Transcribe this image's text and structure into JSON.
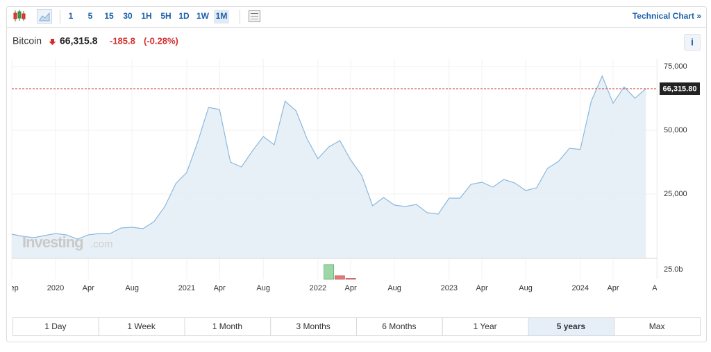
{
  "toolbar": {
    "intervals": [
      "1",
      "5",
      "15",
      "30",
      "1H",
      "5H",
      "1D",
      "1W",
      "1M"
    ],
    "active_interval": "1M",
    "link": "Technical Chart »"
  },
  "header": {
    "name": "Bitcoin",
    "price": "66,315.8",
    "change": "-185.8",
    "change_percent": "(-0.28%)",
    "info": "i"
  },
  "watermark": {
    "brand": "Investing",
    "suffix": ".com"
  },
  "chart_data": {
    "type": "area",
    "color": "#8ab8de",
    "fill": "#e4edf6",
    "x": [
      "2019-09",
      "2019-10",
      "2019-11",
      "2019-12",
      "2020-01",
      "2020-02",
      "2020-03",
      "2020-04",
      "2020-05",
      "2020-06",
      "2020-07",
      "2020-08",
      "2020-09",
      "2020-10",
      "2020-11",
      "2020-12",
      "2021-01",
      "2021-02",
      "2021-03",
      "2021-04",
      "2021-05",
      "2021-06",
      "2021-07",
      "2021-08",
      "2021-09",
      "2021-10",
      "2021-11",
      "2021-12",
      "2022-01",
      "2022-02",
      "2022-03",
      "2022-04",
      "2022-05",
      "2022-06",
      "2022-07",
      "2022-08",
      "2022-09",
      "2022-10",
      "2022-11",
      "2022-12",
      "2023-01",
      "2023-02",
      "2023-03",
      "2023-04",
      "2023-05",
      "2023-06",
      "2023-07",
      "2023-08",
      "2023-09",
      "2023-10",
      "2023-11",
      "2023-12",
      "2024-01",
      "2024-02",
      "2024-03",
      "2024-04",
      "2024-05",
      "2024-06",
      "2024-07"
    ],
    "values": [
      9240,
      8420,
      7880,
      8700,
      9510,
      8970,
      7340,
      8970,
      9510,
      9510,
      11680,
      11960,
      11410,
      14130,
      20100,
      29080,
      33420,
      45380,
      58970,
      58150,
      37500,
      35600,
      41850,
      47550,
      44290,
      61410,
      57610,
      46740,
      38860,
      43480,
      45920,
      38310,
      32340,
      20380,
      23640,
      20650,
      20110,
      20920,
      17660,
      17120,
      23370,
      23370,
      28800,
      29620,
      27720,
      30710,
      29350,
      26360,
      27450,
      35050,
      37770,
      42930,
      42500,
      61400,
      71300,
      60600,
      67000,
      62600,
      66315.8
    ],
    "xlim": [
      "2019-09",
      "2024-08"
    ],
    "xticks": [
      {
        "value": "2019-09",
        "label": "Sep"
      },
      {
        "value": "2020-01",
        "label": "2020"
      },
      {
        "value": "2020-04",
        "label": "Apr"
      },
      {
        "value": "2020-08",
        "label": "Aug"
      },
      {
        "value": "2021-01",
        "label": "2021"
      },
      {
        "value": "2021-04",
        "label": "Apr"
      },
      {
        "value": "2021-08",
        "label": "Aug"
      },
      {
        "value": "2022-01",
        "label": "2022"
      },
      {
        "value": "2022-04",
        "label": "Apr"
      },
      {
        "value": "2022-08",
        "label": "Aug"
      },
      {
        "value": "2023-01",
        "label": "2023"
      },
      {
        "value": "2023-04",
        "label": "Apr"
      },
      {
        "value": "2023-08",
        "label": "Aug"
      },
      {
        "value": "2024-01",
        "label": "2024"
      },
      {
        "value": "2024-04",
        "label": "Apr"
      },
      {
        "value": "2024-08",
        "label": "Au"
      }
    ],
    "ylim": [
      0,
      78000
    ],
    "yticks": [
      {
        "value": 25000,
        "label": "25,000"
      },
      {
        "value": 50000,
        "label": "50,000"
      },
      {
        "value": 75000,
        "label": "75,000"
      }
    ],
    "grid": true,
    "price_line": {
      "value": 66315.8,
      "label": "66,315.80",
      "color": "#c0392b"
    },
    "volume": {
      "x": [
        "2022-02",
        "2022-03",
        "2022-04"
      ],
      "values": [
        37500000000,
        9000000000,
        2700000000
      ],
      "colors": [
        "#9fd6a8",
        "#e07b7b",
        "#e07b7b"
      ],
      "ylim": [
        0,
        55000000000
      ],
      "yticks": [
        {
          "value": 25000000000,
          "label": "25.0b"
        }
      ]
    }
  },
  "ranges": [
    "1 Day",
    "1 Week",
    "1 Month",
    "3 Months",
    "6 Months",
    "1 Year",
    "5 years",
    "Max"
  ],
  "active_range": "5 years"
}
